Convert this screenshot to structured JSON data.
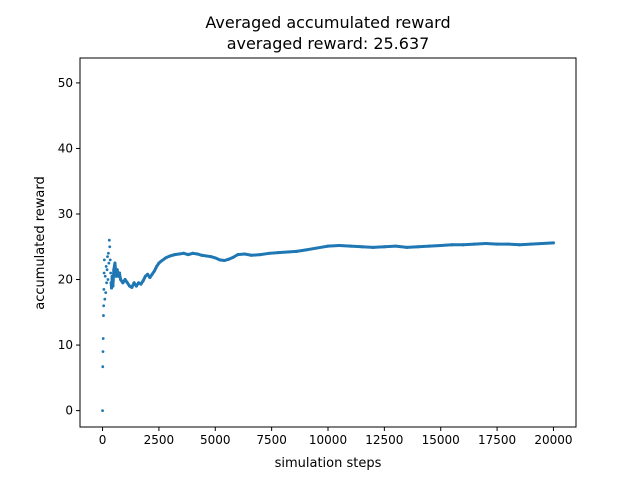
{
  "chart_data": {
    "type": "scatter",
    "title": "Averaged accumulated reward",
    "subtitle": "averaged reward: 25.637",
    "xlabel": "simulation steps",
    "ylabel": "accumulated reward",
    "xlim": [
      -1000,
      21000
    ],
    "ylim": [
      -2.5,
      53.8
    ],
    "xticks": [
      0,
      2500,
      5000,
      7500,
      10000,
      12500,
      15000,
      17500,
      20000
    ],
    "yticks": [
      0,
      10,
      20,
      30,
      40,
      50
    ],
    "grid": false,
    "legend": "none",
    "color": "#1f77b4",
    "x": [
      0,
      10,
      20,
      30,
      40,
      50,
      60,
      70,
      80,
      100,
      120,
      140,
      160,
      180,
      200,
      220,
      240,
      260,
      280,
      300,
      320,
      340,
      360,
      380,
      400,
      430,
      460,
      500,
      550,
      600,
      650,
      700,
      750,
      800,
      900,
      1000,
      1100,
      1200,
      1300,
      1400,
      1500,
      1600,
      1700,
      1800,
      1900,
      2000,
      2100,
      2200,
      2300,
      2400,
      2500,
      2600,
      2800,
      3000,
      3200,
      3400,
      3600,
      3800,
      4000,
      4200,
      4400,
      4600,
      4800,
      5000,
      5200,
      5400,
      5600,
      5800,
      6000,
      6300,
      6600,
      7000,
      7400,
      7800,
      8200,
      8600,
      9000,
      9500,
      10000,
      10500,
      11000,
      11500,
      12000,
      12500,
      13000,
      13500,
      14000,
      14500,
      15000,
      15500,
      16000,
      16500,
      17000,
      17500,
      18000,
      18500,
      19000,
      19500,
      20000
    ],
    "y": [
      0,
      6.7,
      9.0,
      11.0,
      14.5,
      16.0,
      18.5,
      21.0,
      23.0,
      17.0,
      20.5,
      18.0,
      22.0,
      19.5,
      21.5,
      23.5,
      20.0,
      24.0,
      22.5,
      26.0,
      25.0,
      23.0,
      21.0,
      19.5,
      18.7,
      20.5,
      19.0,
      21.5,
      22.5,
      20.5,
      21.5,
      20.5,
      21.0,
      20.0,
      19.5,
      20.0,
      19.5,
      19.0,
      18.8,
      19.5,
      19.0,
      19.5,
      19.3,
      19.8,
      20.5,
      20.8,
      20.3,
      20.8,
      21.3,
      22.0,
      22.5,
      22.8,
      23.3,
      23.6,
      23.8,
      23.9,
      24.0,
      23.8,
      24.0,
      23.9,
      23.7,
      23.6,
      23.5,
      23.3,
      23.0,
      22.9,
      23.1,
      23.4,
      23.8,
      23.9,
      23.7,
      23.8,
      24.0,
      24.1,
      24.2,
      24.3,
      24.5,
      24.8,
      25.1,
      25.2,
      25.1,
      25.0,
      24.9,
      25.0,
      25.1,
      24.9,
      25.0,
      25.1,
      25.2,
      25.3,
      25.3,
      25.4,
      25.5,
      25.4,
      25.4,
      25.3,
      25.4,
      25.5,
      25.6
    ]
  }
}
